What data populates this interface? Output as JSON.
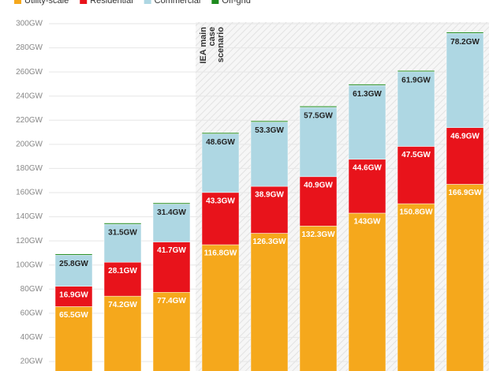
{
  "chart_data": {
    "type": "bar",
    "stacked": true,
    "annotation": "IEA main case scenario",
    "categories": [
      null,
      null,
      null,
      null,
      null,
      null,
      null,
      null,
      null
    ],
    "series": [
      {
        "name": "Utility-scale",
        "color": "#f5a81c",
        "values": [
          65.5,
          74.2,
          77.4,
          116.8,
          126.3,
          132.3,
          143,
          150.8,
          166.9
        ],
        "value_labels": [
          "65.5GW",
          "74.2GW",
          "77.4GW",
          "116.8GW",
          "126.3GW",
          "132.3GW",
          "143GW",
          "150.8GW",
          "166.9GW"
        ]
      },
      {
        "name": "Residential",
        "color": "#e8131b",
        "values": [
          16.9,
          28.1,
          41.7,
          43.3,
          38.9,
          40.9,
          44.6,
          47.5,
          46.9
        ],
        "value_labels": [
          "16.9GW",
          "28.1GW",
          "41.7GW",
          "43.3GW",
          "38.9GW",
          "40.9GW",
          "44.6GW",
          "47.5GW",
          "46.9GW"
        ]
      },
      {
        "name": "Commercial",
        "color": "#aed7e3",
        "values": [
          25.8,
          31.5,
          31.4,
          48.6,
          53.3,
          57.5,
          61.3,
          61.9,
          78.2
        ],
        "value_labels": [
          "25.8GW",
          "31.5GW",
          "31.4GW",
          "48.6GW",
          "53.3GW",
          "57.5GW",
          "61.3GW",
          "61.9GW",
          "78.2GW"
        ]
      },
      {
        "name": "Off-grid",
        "color": "#1e8a1e",
        "values": [
          1,
          1,
          1,
          1,
          1,
          1,
          1,
          1,
          1
        ]
      }
    ],
    "ylim": [
      12,
      302
    ],
    "yticks": [
      {
        "value": 20,
        "label": "20GW"
      },
      {
        "value": 40,
        "label": "40GW"
      },
      {
        "value": 60,
        "label": "60GW"
      },
      {
        "value": 80,
        "label": "80GW"
      },
      {
        "value": 100,
        "label": "100GW"
      },
      {
        "value": 120,
        "label": "120GW"
      },
      {
        "value": 140,
        "label": "140GW"
      },
      {
        "value": 160,
        "label": "160GW"
      },
      {
        "value": 180,
        "label": "180GW"
      },
      {
        "value": 200,
        "label": "200GW"
      },
      {
        "value": 220,
        "label": "220GW"
      },
      {
        "value": 240,
        "label": "240GW"
      },
      {
        "value": 260,
        "label": "260GW"
      },
      {
        "value": 280,
        "label": "280GW"
      },
      {
        "value": 300,
        "label": "300GW"
      }
    ],
    "grid": true
  }
}
